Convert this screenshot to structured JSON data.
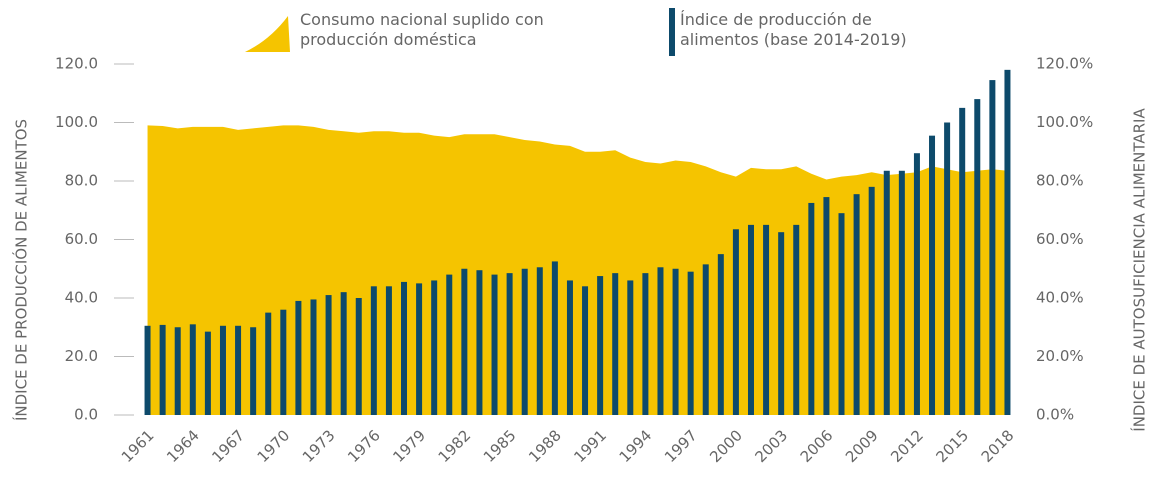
{
  "chart_data": {
    "type": "bar",
    "categories": [
      "1961",
      null,
      null,
      "1964",
      null,
      null,
      "1967",
      null,
      null,
      "1970",
      null,
      null,
      "1973",
      null,
      null,
      "1976",
      null,
      null,
      "1979",
      null,
      null,
      "1982",
      null,
      null,
      "1985",
      null,
      null,
      "1988",
      null,
      null,
      "1991",
      null,
      null,
      "1994",
      null,
      null,
      "1997",
      null,
      null,
      "2000",
      null,
      null,
      "2003",
      null,
      null,
      "2006",
      null,
      null,
      "2009",
      null,
      null,
      "2012",
      null,
      null,
      "2015",
      null,
      null,
      "2018"
    ],
    "series": [
      {
        "name": "Consumo nacional suplido con producción doméstica",
        "type": "area",
        "axis": "y2",
        "color": "#f5c400",
        "values": [
          99,
          98.8,
          98,
          98.5,
          98.5,
          98.5,
          97.5,
          98,
          98.5,
          99,
          99,
          98.5,
          97.5,
          97,
          96.5,
          97,
          97,
          96.5,
          96.5,
          95.5,
          95,
          96,
          96,
          96,
          95,
          94,
          93.5,
          92.5,
          92,
          90,
          90,
          90.5,
          88,
          86.5,
          86,
          87,
          86.5,
          85,
          83,
          81.5,
          84.5,
          84,
          84,
          85,
          82.5,
          80.5,
          81.5,
          82,
          83,
          82,
          82.5,
          83,
          85,
          84,
          83,
          83.5,
          84,
          83.5
        ]
      },
      {
        "name": "Índice de producción de alimentos (base 2014-2019)",
        "type": "bar",
        "axis": "y",
        "color": "#0d4a6b",
        "values": [
          30.5,
          30.8,
          30,
          31,
          28.5,
          30.5,
          30.5,
          30,
          35,
          36,
          39,
          39.5,
          41,
          42,
          40,
          44,
          44,
          45.5,
          45,
          46,
          48,
          50,
          49.5,
          48,
          48.5,
          50,
          50.5,
          52.5,
          46,
          44,
          47.5,
          48.5,
          46,
          48.5,
          50.5,
          50,
          49,
          51.5,
          55,
          63.5,
          65,
          65,
          62.5,
          65,
          72.5,
          74.5,
          69,
          75.5,
          78,
          83.5,
          83.5,
          89.5,
          95.5,
          100,
          105,
          108,
          114.5,
          118
        ]
      }
    ],
    "ylabel": "ÍNDICE DE PRODUCCIÓN DE ALIMENTOS",
    "y2label": "ÍNDICE DE AUTOSUFICIENCIA ALIMENTARIA",
    "ylim": [
      0,
      120
    ],
    "yticks": [
      {
        "value": 0,
        "label": "0.0"
      },
      {
        "value": 20,
        "label": "20.0"
      },
      {
        "value": 40,
        "label": "40.0"
      },
      {
        "value": 60,
        "label": "60.0"
      },
      {
        "value": 80,
        "label": "80.0"
      },
      {
        "value": 100,
        "label": "100.0"
      },
      {
        "value": 120,
        "label": "120.0"
      }
    ],
    "y2lim": [
      0,
      120
    ],
    "y2ticks": [
      {
        "value": 0,
        "label": "0.0%"
      },
      {
        "value": 20,
        "label": "20.0%"
      },
      {
        "value": 40,
        "label": "40.0%"
      },
      {
        "value": 60,
        "label": "60.0%"
      },
      {
        "value": 80,
        "label": "80.0%"
      },
      {
        "value": 100,
        "label": "100.0%"
      },
      {
        "value": 120,
        "label": "120.0%"
      }
    ],
    "legend": "top"
  }
}
